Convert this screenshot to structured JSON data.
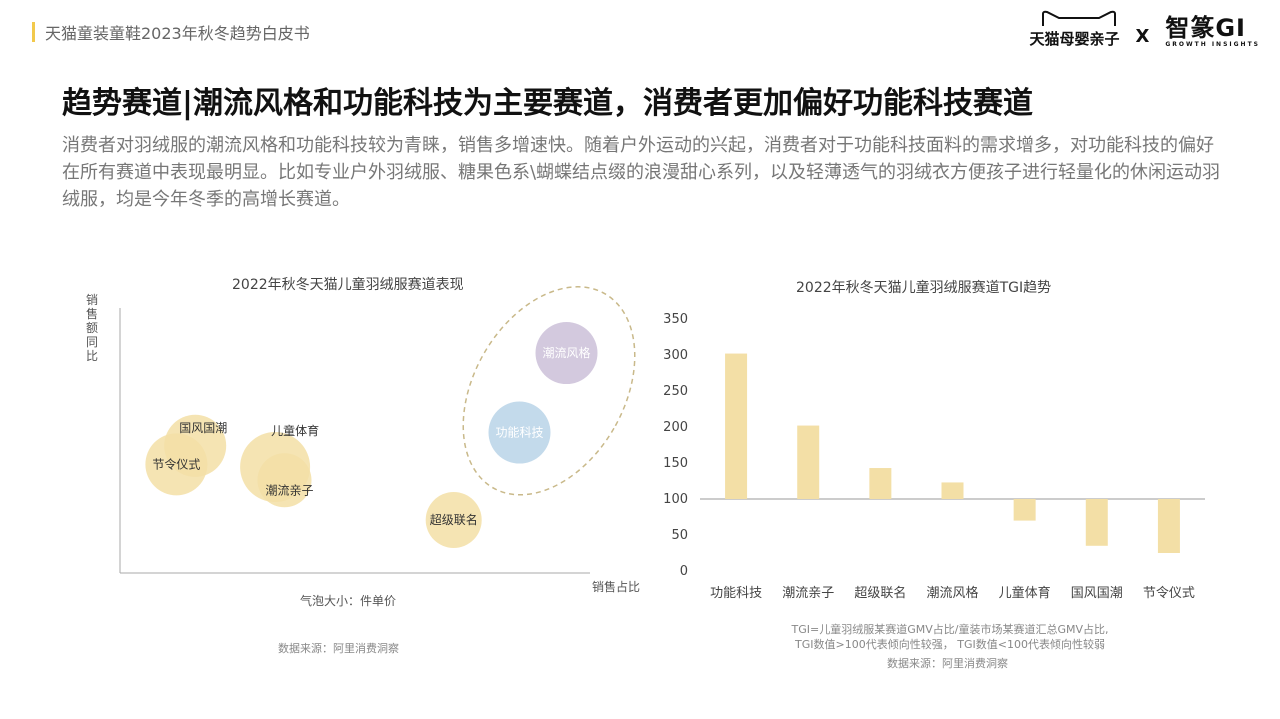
{
  "header": {
    "doc_title": "天猫童装童鞋2023年秋冬趋势白皮书",
    "logo_tmall": "天猫母婴亲子",
    "logo_cross": "X",
    "logo_gi": "智篆GI",
    "logo_gi_sub": "GROWTH INSIGHTS"
  },
  "headline": "趋势赛道|潮流风格和功能科技为主要赛道，消费者更加偏好功能科技赛道",
  "description": "消费者对羽绒服的潮流风格和功能科技较为青睐，销售多增速快。随着户外运动的兴起，消费者对于功能科技面料的需求增多，对功能科技的偏好在所有赛道中表现最明显。比如专业户外羽绒服、糖果色系\\蝴蝶结点缀的浪漫甜心系列，以及轻薄透气的羽绒衣方便孩子进行轻量化的休闲运动羽绒服，均是今年冬季的高增长赛道。",
  "left": {
    "title": "2022年秋冬天猫儿童羽绒服赛道表现",
    "size_note": "气泡大小：件单价",
    "source": "数据来源：阿里消费洞察"
  },
  "right": {
    "title": "2022年秋冬天猫儿童羽绒服赛道TGI趋势",
    "note_line1": "TGI=儿童羽绒服某赛道GMV占比/童装市场某赛道汇总GMV占比,",
    "note_line2": "TGI数值>100代表倾向性较强， TGI数值<100代表倾向性较弱",
    "source": "数据来源：阿里消费洞察"
  },
  "chart_data": [
    {
      "type": "scatter",
      "title": "2022年秋冬天猫儿童羽绒服赛道表现",
      "xlabel": "销售占比",
      "ylabel": "销售额同比",
      "xlim": [
        0,
        100
      ],
      "ylim": [
        0,
        100
      ],
      "points": [
        {
          "name": "节令仪式",
          "x": 12,
          "y": 41,
          "size": 31,
          "color": "#f3dfa6"
        },
        {
          "name": "国风国潮",
          "x": 16,
          "y": 48,
          "size": 31,
          "color": "#f3dfa6"
        },
        {
          "name": "儿童体育",
          "x": 33,
          "y": 40,
          "size": 35,
          "color": "#f3dfa6"
        },
        {
          "name": "潮流亲子",
          "x": 35,
          "y": 35,
          "size": 27,
          "color": "#f3dfa6"
        },
        {
          "name": "超级联名",
          "x": 71,
          "y": 20,
          "size": 28,
          "color": "#f3dfa6"
        },
        {
          "name": "功能科技",
          "x": 85,
          "y": 53,
          "size": 31,
          "color": "#b9d3e7"
        },
        {
          "name": "潮流风格",
          "x": 95,
          "y": 83,
          "size": 31,
          "color": "#cbbfd8"
        }
      ],
      "highlight_group": [
        "功能科技",
        "潮流风格"
      ]
    },
    {
      "type": "bar",
      "title": "2022年秋冬天猫儿童羽绒服赛道TGI趋势",
      "categories": [
        "功能科技",
        "潮流亲子",
        "超级联名",
        "潮流风格",
        "儿童体育",
        "国风国潮",
        "节令仪式"
      ],
      "values": [
        302,
        202,
        143,
        123,
        70,
        35,
        25
      ],
      "baseline": 100,
      "ylim": [
        0,
        350
      ],
      "yticks": [
        0,
        50,
        100,
        150,
        200,
        250,
        300,
        350
      ],
      "color": "#f3dfa6"
    }
  ]
}
